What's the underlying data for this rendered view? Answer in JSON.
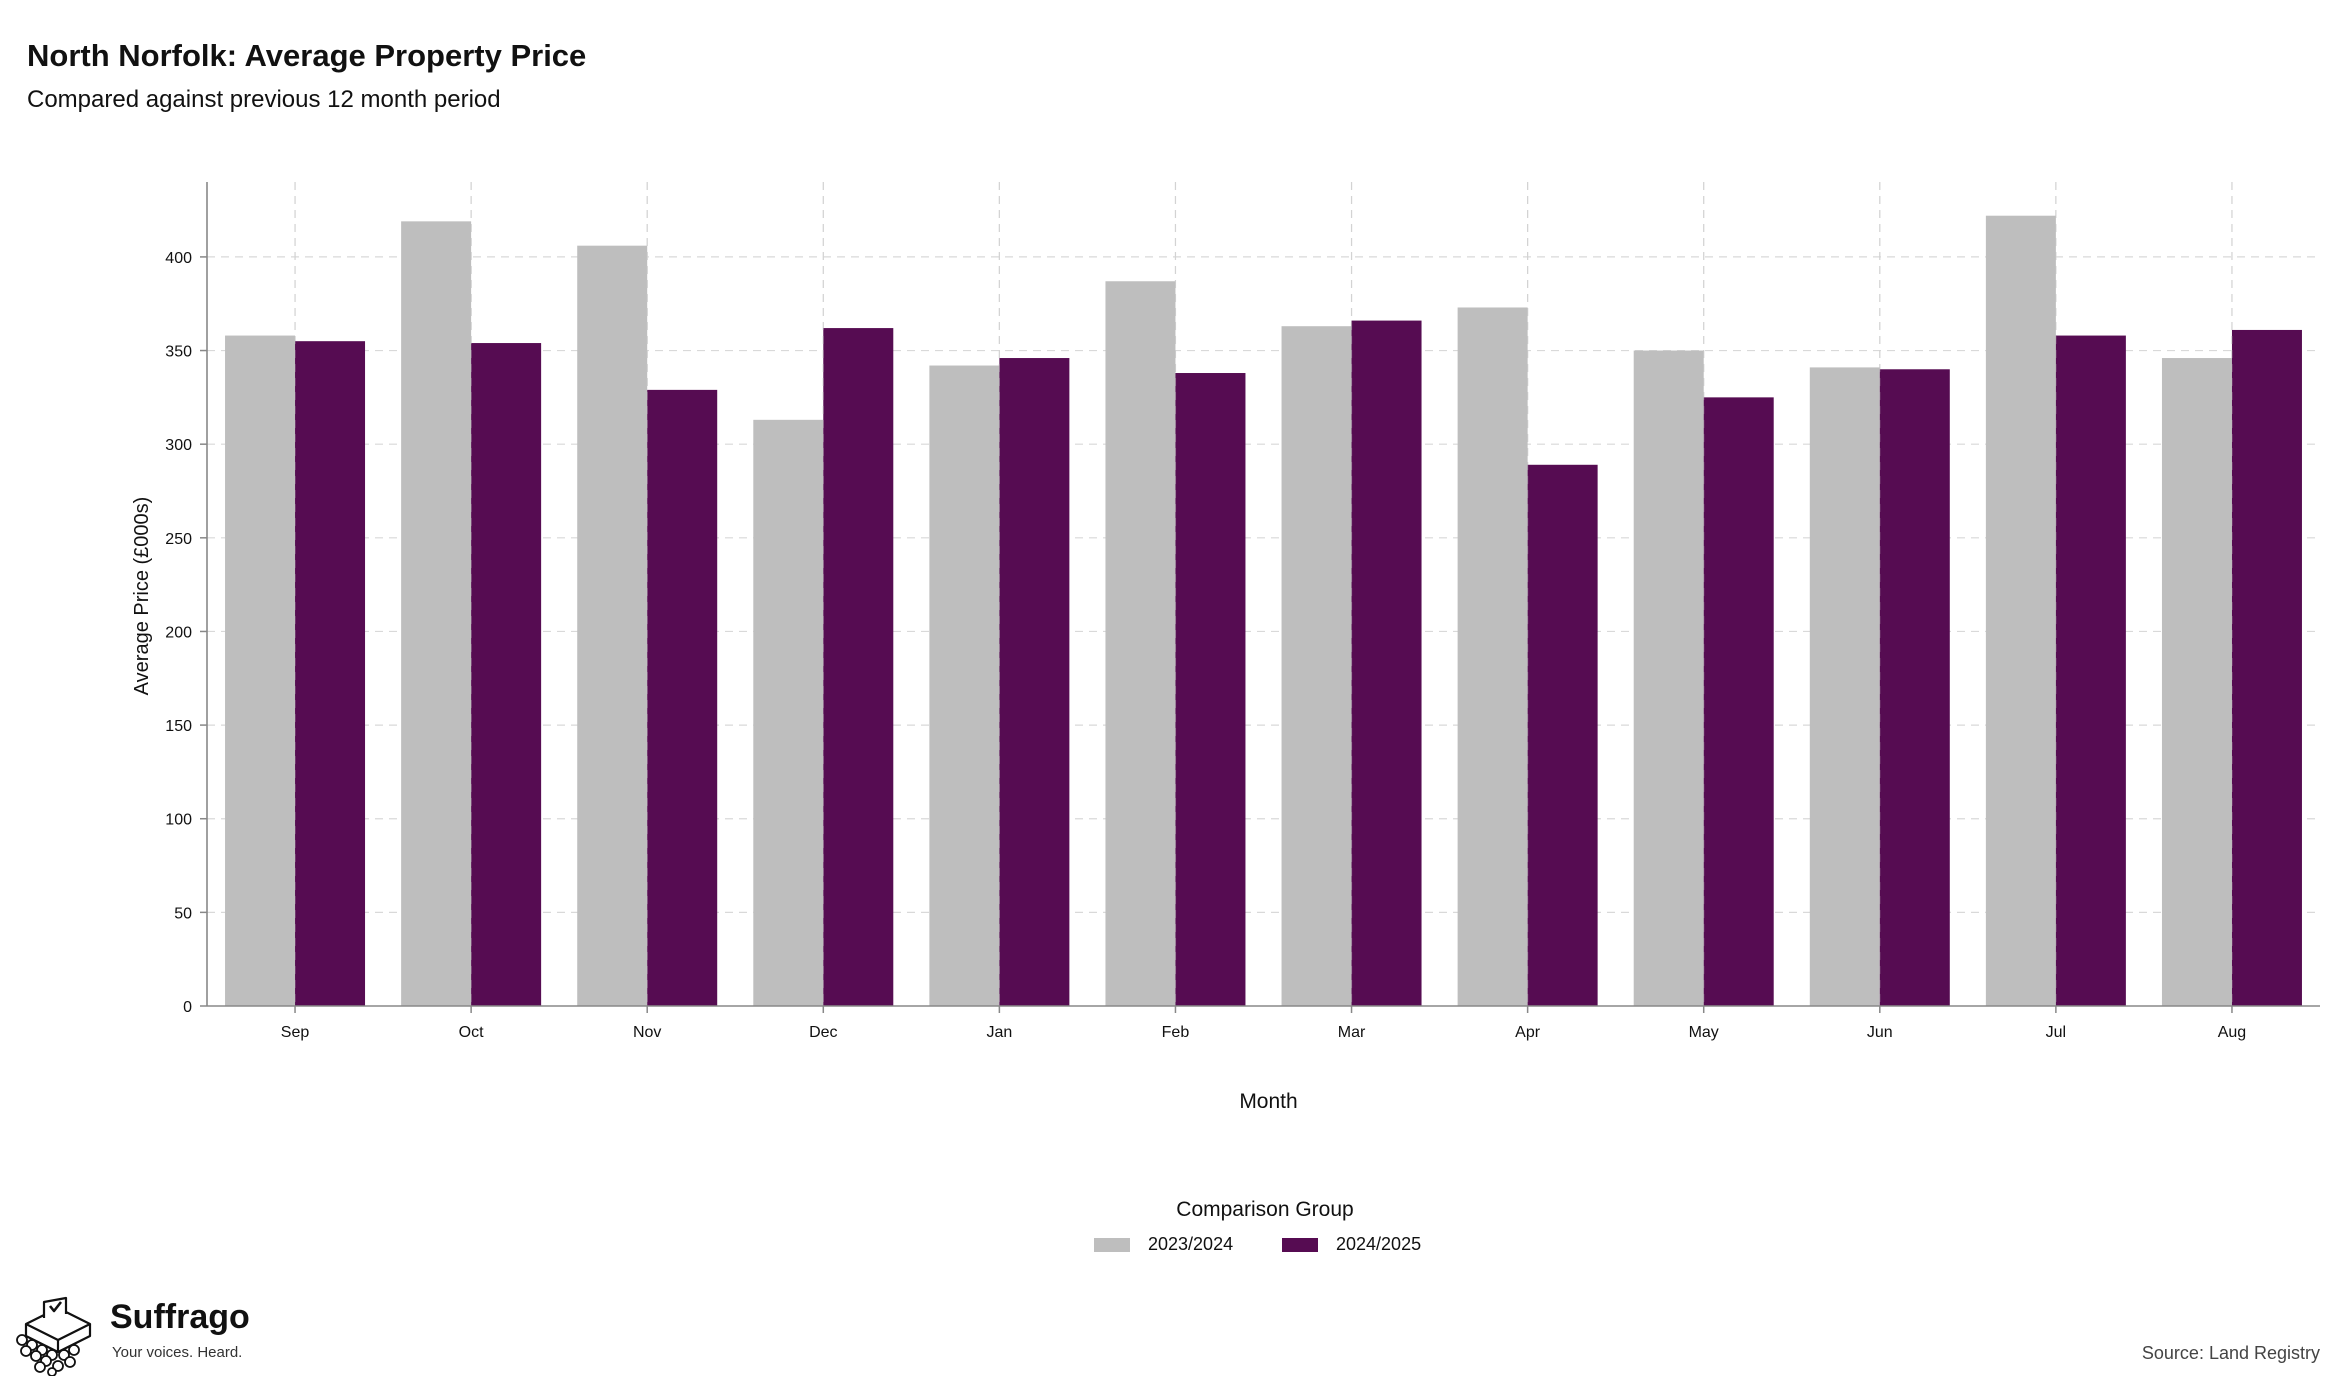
{
  "header": {
    "title": "North Norfolk: Average Property Price",
    "subtitle": "Compared against previous 12 month period"
  },
  "legend": {
    "title": "Comparison Group",
    "items": [
      {
        "label": "2023/2024",
        "color": "#bebebe"
      },
      {
        "label": "2024/2025",
        "color": "#560c52"
      }
    ]
  },
  "branding": {
    "name": "Suffrago",
    "tagline": "Your voices. Heard.",
    "logo_icon": "ballot-box-crowd-icon"
  },
  "source": "Source: Land Registry",
  "chart_data": {
    "type": "bar",
    "xlabel": "Month",
    "ylabel": "Average Price (£000s)",
    "categories": [
      "Sep",
      "Oct",
      "Nov",
      "Dec",
      "Jan",
      "Feb",
      "Mar",
      "Apr",
      "May",
      "Jun",
      "Jul",
      "Aug"
    ],
    "ylim": [
      0,
      440
    ],
    "yticks": [
      0,
      50,
      100,
      150,
      200,
      250,
      300,
      350,
      400
    ],
    "grid": true,
    "legend_position": "bottom",
    "series": [
      {
        "name": "2023/2024",
        "color": "#bebebe",
        "values": [
          358,
          419,
          406,
          313,
          342,
          387,
          363,
          373,
          350,
          341,
          422,
          346
        ]
      },
      {
        "name": "2024/2025",
        "color": "#560c52",
        "values": [
          355,
          354,
          329,
          362,
          346,
          338,
          366,
          289,
          325,
          340,
          358,
          361
        ]
      }
    ]
  }
}
